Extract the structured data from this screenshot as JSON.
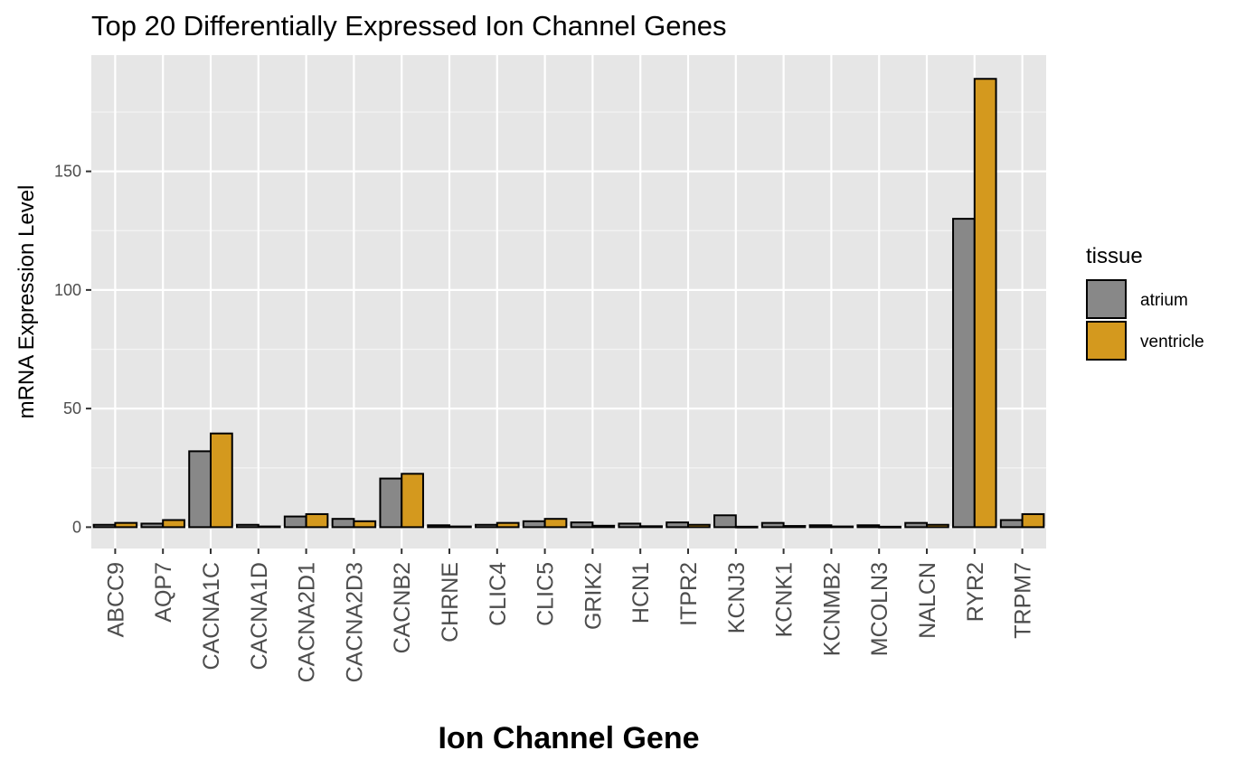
{
  "chart_data": {
    "type": "bar",
    "title": "Top 20 Differentially Expressed Ion Channel Genes",
    "xlabel": "Ion Channel Gene",
    "ylabel": "mRNA Expression Level",
    "categories": [
      "ABCC9",
      "AQP7",
      "CACNA1C",
      "CACNA1D",
      "CACNA2D1",
      "CACNA2D3",
      "CACNB2",
      "CHRNE",
      "CLIC4",
      "CLIC5",
      "GRIK2",
      "HCN1",
      "ITPR2",
      "KCNJ3",
      "KCNK1",
      "KCNMB2",
      "MCOLN3",
      "NALCN",
      "RYR2",
      "TRPM7"
    ],
    "series": [
      {
        "name": "atrium",
        "color": "#888888",
        "values": [
          1.0,
          1.5,
          32,
          1.0,
          4.5,
          3.5,
          20.5,
          0.8,
          1.0,
          2.5,
          2.0,
          1.5,
          2.0,
          5.0,
          1.8,
          0.8,
          0.8,
          1.8,
          130,
          3.0
        ]
      },
      {
        "name": "ventricle",
        "color": "#D4991E",
        "values": [
          1.8,
          3.0,
          39.5,
          0.3,
          5.5,
          2.5,
          22.5,
          0.3,
          1.8,
          3.5,
          0.6,
          0.4,
          1.0,
          0.2,
          0.5,
          0.3,
          0.2,
          1.0,
          189,
          5.5
        ]
      }
    ],
    "yticks": [
      0,
      50,
      100,
      150
    ],
    "ylim": [
      -9,
      199
    ],
    "legend": {
      "title": "tissue",
      "position": "right"
    },
    "grid": true,
    "panel_background": "#E6E6E6"
  }
}
